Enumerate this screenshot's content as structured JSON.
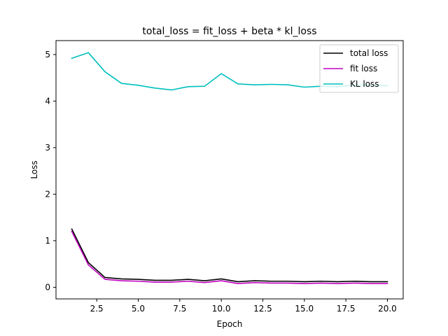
{
  "chart_data": {
    "type": "line",
    "title": "total_loss = fit_loss + beta * kl_loss",
    "xlabel": "Epoch",
    "ylabel": "Loss",
    "xlim": [
      0.05,
      20.95
    ],
    "ylim": [
      -0.25,
      5.3
    ],
    "xticks": [
      2.5,
      5.0,
      7.5,
      10.0,
      12.5,
      15.0,
      17.5,
      20.0
    ],
    "yticks": [
      0,
      1,
      2,
      3,
      4,
      5
    ],
    "grid": false,
    "legend_position": "top-right",
    "x": [
      1,
      2,
      3,
      4,
      5,
      6,
      7,
      8,
      9,
      10,
      11,
      12,
      13,
      14,
      15,
      16,
      17,
      18,
      19,
      20
    ],
    "series": [
      {
        "name": "total loss",
        "color": "#000000",
        "values": [
          1.25,
          0.53,
          0.21,
          0.18,
          0.17,
          0.15,
          0.15,
          0.17,
          0.14,
          0.18,
          0.12,
          0.14,
          0.13,
          0.13,
          0.12,
          0.13,
          0.12,
          0.13,
          0.12,
          0.12
        ]
      },
      {
        "name": "fit loss",
        "color": "#bf00bf",
        "values": [
          1.2,
          0.48,
          0.17,
          0.14,
          0.13,
          0.11,
          0.11,
          0.13,
          0.1,
          0.14,
          0.08,
          0.1,
          0.09,
          0.09,
          0.08,
          0.09,
          0.08,
          0.09,
          0.08,
          0.08
        ]
      },
      {
        "name": "KL loss",
        "color": "#00bfbf",
        "values": [
          4.92,
          5.04,
          4.63,
          4.38,
          4.34,
          4.28,
          4.24,
          4.31,
          4.32,
          4.59,
          4.37,
          4.35,
          4.36,
          4.35,
          4.3,
          4.32,
          4.31,
          4.34,
          4.35,
          4.33
        ]
      }
    ]
  }
}
